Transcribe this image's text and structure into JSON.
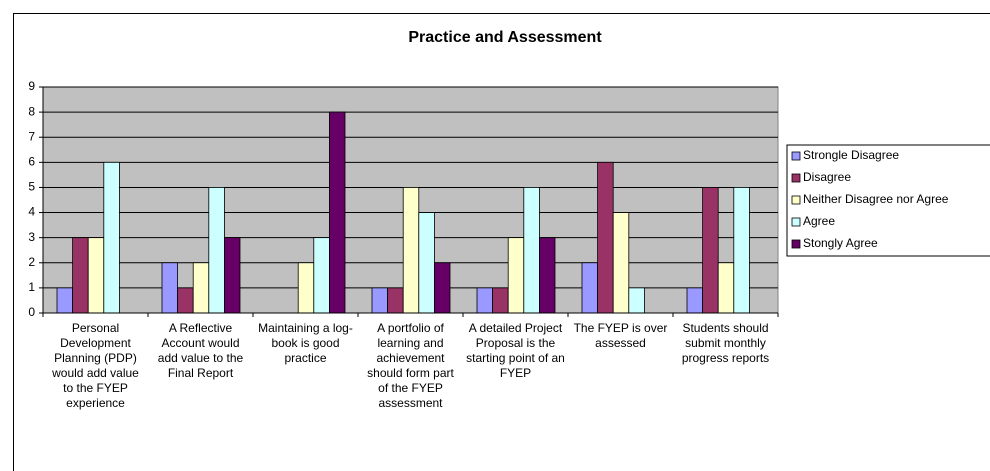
{
  "chart_data": {
    "type": "bar",
    "title": "Practice and Assessment",
    "categories": [
      "Personal Development Planning (PDP) would add value to the FYEP experience",
      "A Reflective Account would add value to the Final Report",
      "Maintaining a log-book is good practice",
      "A portfolio of learning and achievement should form part of the FYEP assessment",
      "A detailed Project Proposal is the starting point of an FYEP",
      "The FYEP is over assessed",
      "Students should submit monthly progress reports"
    ],
    "series": [
      {
        "name": "Strongle Disagree",
        "color": "#9999ff",
        "values": [
          1,
          2,
          0,
          1,
          1,
          2,
          1
        ]
      },
      {
        "name": "Disagree",
        "color": "#993366",
        "values": [
          3,
          1,
          0,
          1,
          1,
          6,
          5
        ]
      },
      {
        "name": "Neither Disagree nor Agree",
        "color": "#ffffcc",
        "values": [
          3,
          2,
          2,
          5,
          3,
          4,
          2
        ]
      },
      {
        "name": "Agree",
        "color": "#ccffff",
        "values": [
          6,
          5,
          3,
          4,
          5,
          1,
          5
        ]
      },
      {
        "name": "Stongly Agree",
        "color": "#660066",
        "values": [
          0,
          3,
          8,
          2,
          3,
          0,
          0
        ]
      }
    ],
    "ylim": [
      0,
      9
    ],
    "yticks": [
      0,
      1,
      2,
      3,
      4,
      5,
      6,
      7,
      8,
      9
    ],
    "grid": true,
    "legend": "right"
  }
}
